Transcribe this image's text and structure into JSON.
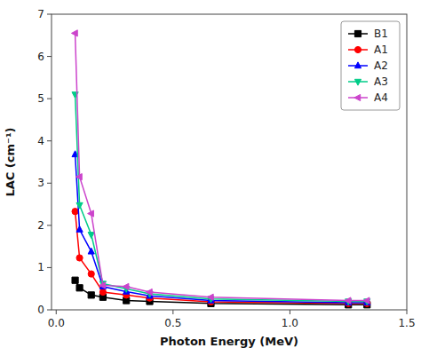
{
  "chart_data": {
    "type": "line",
    "x": [
      0.081,
      0.1,
      0.15,
      0.2,
      0.3,
      0.4,
      0.662,
      1.25,
      1.33
    ],
    "series": [
      {
        "name": "B1",
        "color": "#000000",
        "marker": "square",
        "values": [
          0.7,
          0.52,
          0.35,
          0.3,
          0.22,
          0.2,
          0.15,
          0.12,
          0.12
        ]
      },
      {
        "name": "A1",
        "color": "#ff0000",
        "marker": "circle",
        "values": [
          2.33,
          1.23,
          0.85,
          0.42,
          0.35,
          0.28,
          0.19,
          0.15,
          0.15
        ]
      },
      {
        "name": "A2",
        "color": "#0000ff",
        "marker": "triangle-up",
        "values": [
          3.68,
          1.9,
          1.38,
          0.55,
          0.43,
          0.33,
          0.22,
          0.17,
          0.17
        ]
      },
      {
        "name": "A3",
        "color": "#00cc88",
        "marker": "triangle-down",
        "values": [
          5.1,
          2.48,
          1.78,
          0.62,
          0.5,
          0.38,
          0.26,
          0.2,
          0.2
        ]
      },
      {
        "name": "A4",
        "color": "#cc44cc",
        "marker": "triangle-left",
        "values": [
          6.55,
          3.15,
          2.28,
          0.58,
          0.55,
          0.42,
          0.3,
          0.22,
          0.22
        ]
      }
    ],
    "xlabel": "Photon Energy (MeV)",
    "ylabel": "LAC (cm⁻¹)",
    "xlim": [
      -0.02,
      1.5
    ],
    "ylim": [
      0,
      7
    ],
    "xticks": [
      {
        "value": 0,
        "label": "0.0"
      },
      0.5,
      {
        "value": 1,
        "label": "1.0"
      },
      1.5
    ],
    "yticks": [
      0,
      1,
      2,
      3,
      4,
      5,
      6,
      7
    ],
    "grid": false,
    "legend": "upper right"
  }
}
